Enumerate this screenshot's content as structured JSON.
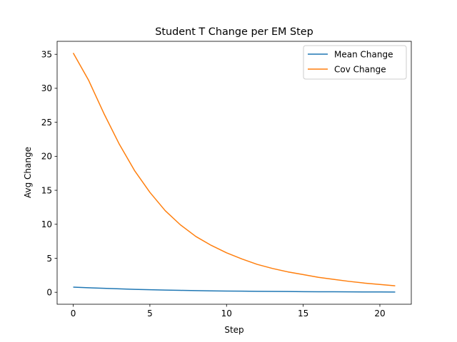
{
  "chart_data": {
    "type": "line",
    "title": "Student T Change per EM Step",
    "xlabel": "Step",
    "ylabel": "Avg Change",
    "xlim": [
      -1.05,
      22.05
    ],
    "ylim": [
      -1.76,
      36.91
    ],
    "xticks": [
      0,
      5,
      10,
      15,
      20
    ],
    "yticks": [
      0,
      5,
      10,
      15,
      20,
      25,
      30,
      35
    ],
    "grid": false,
    "legend_position": "top-right",
    "x": [
      0,
      1,
      2,
      3,
      4,
      5,
      6,
      7,
      8,
      9,
      10,
      11,
      12,
      13,
      14,
      15,
      16,
      17,
      18,
      19,
      20,
      21
    ],
    "series": [
      {
        "name": "Mean Change",
        "color": "#1f77b4",
        "values": [
          0.75,
          0.66,
          0.58,
          0.5,
          0.43,
          0.37,
          0.32,
          0.28,
          0.24,
          0.21,
          0.18,
          0.16,
          0.14,
          0.12,
          0.11,
          0.09,
          0.08,
          0.07,
          0.06,
          0.05,
          0.05,
          0.04
        ]
      },
      {
        "name": "Cov Change",
        "color": "#ff7f0e",
        "values": [
          35.2,
          31.2,
          26.3,
          21.8,
          17.9,
          14.7,
          12.0,
          9.9,
          8.2,
          6.9,
          5.8,
          4.9,
          4.1,
          3.5,
          3.0,
          2.6,
          2.2,
          1.9,
          1.6,
          1.35,
          1.15,
          0.95
        ]
      }
    ]
  }
}
